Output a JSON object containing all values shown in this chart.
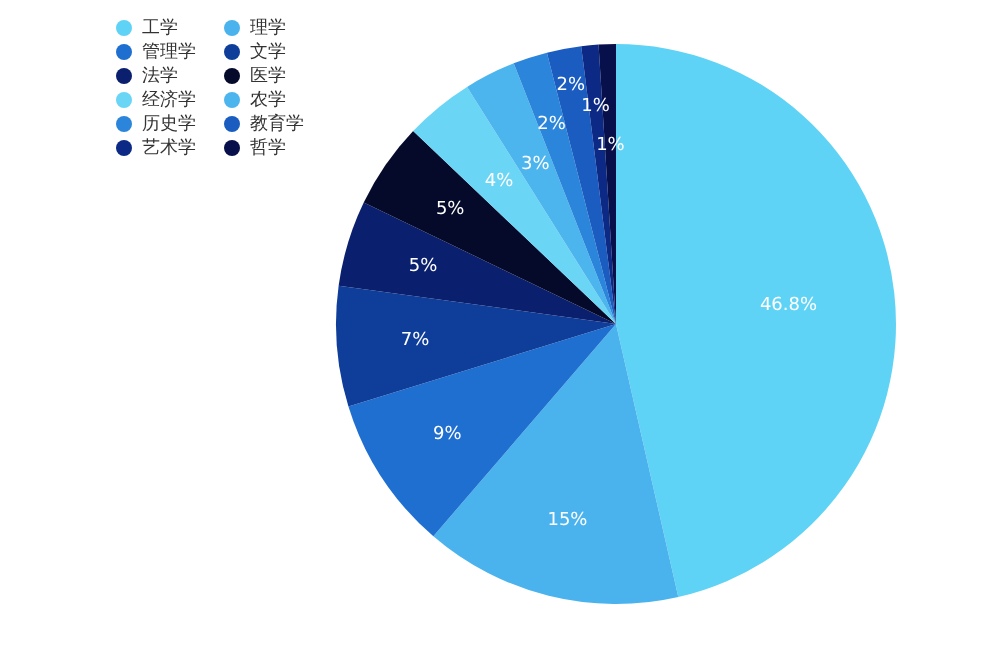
{
  "chart_data": {
    "type": "pie",
    "categories": [
      "工学",
      "理学",
      "管理学",
      "文学",
      "法学",
      "医学",
      "经济学",
      "农学",
      "历史学",
      "教育学",
      "艺术学",
      "哲学"
    ],
    "values": [
      46.8,
      15,
      9,
      7,
      5,
      5,
      4,
      3,
      2,
      2,
      1,
      1
    ],
    "value_labels": [
      "46.8%",
      "15%",
      "9%",
      "7%",
      "5%",
      "5%",
      "4%",
      "3%",
      "2%",
      "2%",
      "1%",
      "1%"
    ],
    "colors": [
      "#5fd3f5",
      "#4ab3ee",
      "#1e6fd0",
      "#0f3e9a",
      "#0a1f6e",
      "#050a2a",
      "#6ad5f5",
      "#4db5ee",
      "#2b85da",
      "#1a5cc0",
      "#0c2a85",
      "#07104a"
    ],
    "legend": "top left"
  }
}
